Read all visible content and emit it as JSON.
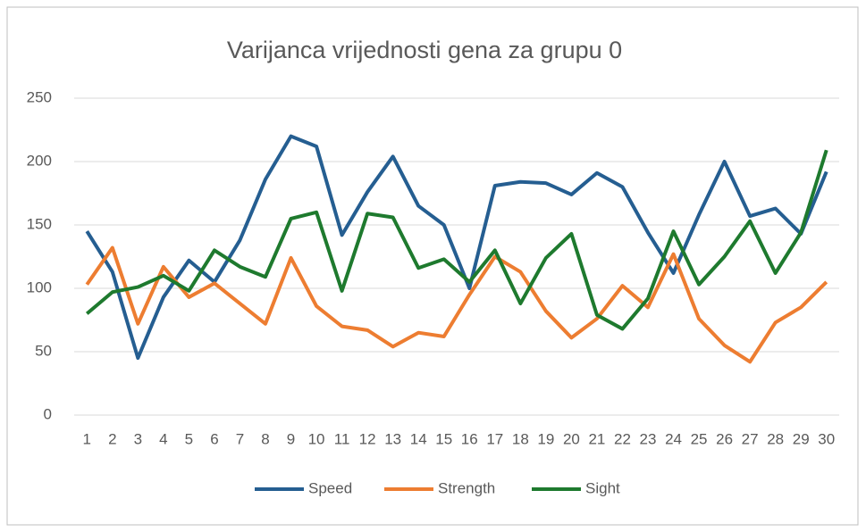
{
  "chart_data": {
    "type": "line",
    "title": "Varijanca vrijednosti gena za grupu 0",
    "categories": [
      "1",
      "2",
      "3",
      "4",
      "5",
      "6",
      "7",
      "8",
      "9",
      "10",
      "11",
      "12",
      "13",
      "14",
      "15",
      "16",
      "17",
      "18",
      "19",
      "20",
      "21",
      "22",
      "23",
      "24",
      "25",
      "26",
      "27",
      "28",
      "29",
      "30"
    ],
    "series": [
      {
        "name": "Speed",
        "color": "#255e91",
        "values": [
          145,
          113,
          45,
          93,
          122,
          105,
          138,
          186,
          220,
          212,
          142,
          176,
          204,
          165,
          150,
          100,
          181,
          184,
          183,
          174,
          191,
          180,
          144,
          112,
          158,
          200,
          157,
          163,
          143,
          192
        ]
      },
      {
        "name": "Strength",
        "color": "#ed7d31",
        "values": [
          103,
          132,
          72,
          117,
          93,
          104,
          88,
          72,
          124,
          86,
          70,
          67,
          54,
          65,
          62,
          95,
          125,
          113,
          82,
          61,
          76,
          102,
          85,
          127,
          76,
          55,
          42,
          73,
          85,
          105
        ]
      },
      {
        "name": "Sight",
        "color": "#1e7a2e",
        "values": [
          80,
          97,
          101,
          110,
          98,
          130,
          117,
          109,
          155,
          160,
          98,
          159,
          156,
          116,
          123,
          105,
          130,
          88,
          124,
          143,
          79,
          68,
          92,
          145,
          103,
          125,
          153,
          112,
          144,
          209
        ]
      }
    ],
    "ylim": [
      0,
      250
    ],
    "yticks": [
      0,
      50,
      100,
      150,
      200,
      250
    ],
    "grid": true,
    "legend": "bottom"
  }
}
